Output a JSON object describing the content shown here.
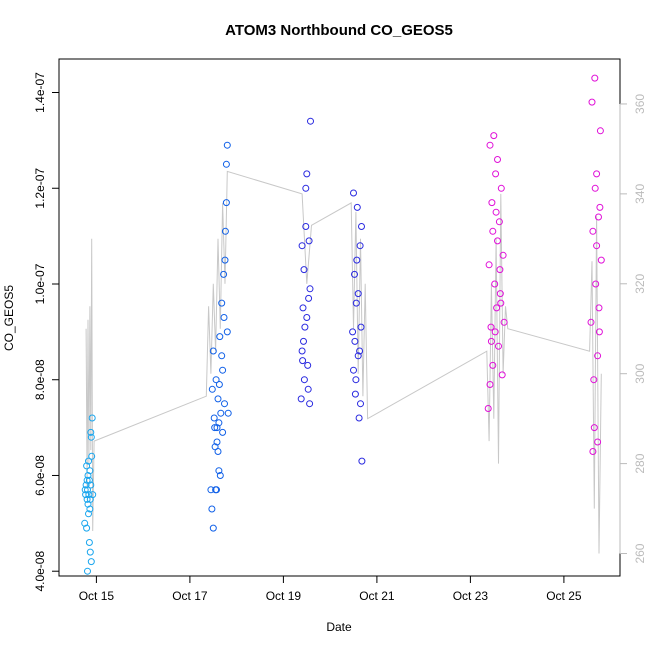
{
  "chart_data": {
    "type": "scatter",
    "title": "ATOM3 Northbound CO_GEOS5",
    "xlabel": "Date",
    "ylabel": "CO_GEOS5",
    "x_ticks": [
      "Oct 15",
      "Oct 17",
      "Oct 19",
      "Oct 21",
      "Oct 23",
      "Oct 25"
    ],
    "x_tick_days": [
      15,
      17,
      19,
      21,
      23,
      25
    ],
    "xlim": [
      14.2,
      26.2
    ],
    "ylim": [
      3.9e-08,
      1.47e-07
    ],
    "y_ticks": [
      "4.0e-08",
      "6.0e-08",
      "8.0e-08",
      "1.0e-07",
      "1.2e-07",
      "1.4e-07"
    ],
    "y_tick_values": [
      4e-08,
      6e-08,
      8e-08,
      1e-07,
      1.2e-07,
      1.4e-07
    ],
    "y2_ticks": [
      "260",
      "280",
      "300",
      "320",
      "340",
      "360"
    ],
    "y2_tick_values": [
      260,
      280,
      300,
      320,
      340,
      360
    ],
    "y2lim": [
      255,
      370
    ],
    "grid": false,
    "line_series": {
      "color": "#c8c8c8",
      "x": [
        14.78,
        14.8,
        14.82,
        14.84,
        14.86,
        14.88,
        14.9,
        14.92,
        14.95,
        17.35,
        17.4,
        17.45,
        17.5,
        17.55,
        17.6,
        17.65,
        17.7,
        17.75,
        17.8,
        19.4,
        19.5,
        19.6,
        20.45,
        20.5,
        20.55,
        20.6,
        20.65,
        20.7,
        20.75,
        20.8,
        23.35,
        23.4,
        23.45,
        23.5,
        23.55,
        23.6,
        23.65,
        23.7,
        23.75,
        23.8,
        25.55,
        25.6,
        25.65,
        25.7,
        25.75,
        25.8
      ],
      "y": [
        310,
        275,
        312,
        280,
        315,
        283,
        330,
        265,
        285,
        295,
        315,
        300,
        320,
        305,
        330,
        310,
        338,
        320,
        345,
        340,
        320,
        333,
        338,
        310,
        336,
        300,
        330,
        295,
        320,
        290,
        305,
        285,
        320,
        290,
        330,
        280,
        340,
        300,
        315,
        310,
        305,
        325,
        270,
        335,
        260,
        300
      ]
    },
    "series": [
      {
        "color": "#1aa6ee",
        "x": [
          14.75,
          14.77,
          14.78,
          14.79,
          14.8,
          14.8,
          14.81,
          14.82,
          14.82,
          14.83,
          14.84,
          14.85,
          14.85,
          14.86,
          14.87,
          14.88,
          14.88,
          14.89,
          14.9,
          14.91,
          14.92,
          14.79,
          14.83,
          14.86,
          14.89,
          14.76,
          14.81,
          14.87
        ],
        "y": [
          5e-08,
          5.6e-08,
          5.8e-08,
          6.2e-08,
          5.5e-08,
          5.9e-08,
          5.7e-08,
          6e-08,
          5.4e-08,
          6.3e-08,
          5.6e-08,
          4.6e-08,
          5.9e-08,
          5.3e-08,
          4.4e-08,
          6.9e-08,
          5.8e-08,
          4.2e-08,
          6.4e-08,
          7.2e-08,
          5.6e-08,
          4.9e-08,
          5.2e-08,
          6.1e-08,
          6.8e-08,
          5.7e-08,
          4e-08,
          5.5e-08
        ]
      },
      {
        "color": "#1060e8",
        "x": [
          17.45,
          17.48,
          17.5,
          17.52,
          17.54,
          17.56,
          17.58,
          17.6,
          17.62,
          17.64,
          17.66,
          17.68,
          17.7,
          17.72,
          17.74,
          17.76,
          17.78,
          17.8,
          17.82,
          17.5,
          17.55,
          17.6,
          17.65,
          17.7,
          17.75,
          17.8,
          17.47,
          17.53,
          17.58,
          17.63,
          17.68,
          17.73,
          17.78,
          17.57,
          17.62
        ],
        "y": [
          5.7e-08,
          7.8e-08,
          8.6e-08,
          7.2e-08,
          6.6e-08,
          8e-08,
          7e-08,
          7.6e-08,
          6.1e-08,
          8.9e-08,
          7.3e-08,
          9.6e-08,
          6.9e-08,
          1.02e-07,
          7.5e-08,
          1.11e-07,
          1.25e-07,
          9e-08,
          7.3e-08,
          4.9e-08,
          5.7e-08,
          6.5e-08,
          6e-08,
          8.2e-08,
          1.05e-07,
          1.29e-07,
          5.3e-08,
          7e-08,
          6.7e-08,
          7.9e-08,
          8.5e-08,
          9.3e-08,
          1.17e-07,
          5.7e-08,
          7.1e-08
        ]
      },
      {
        "color": "#2a2ae0",
        "x": [
          19.38,
          19.4,
          19.42,
          19.44,
          19.46,
          19.48,
          19.5,
          19.52,
          19.54,
          19.56,
          19.58,
          19.4,
          19.45,
          19.5,
          19.55,
          19.43,
          19.48,
          19.53,
          19.57,
          19.41,
          20.48,
          20.5,
          20.52,
          20.54,
          20.56,
          20.58,
          20.6,
          20.62,
          20.64,
          20.66,
          20.68,
          20.5,
          20.55,
          20.6,
          20.65,
          20.53,
          20.57,
          20.63,
          20.67
        ],
        "y": [
          7.6e-08,
          8.6e-08,
          9.5e-08,
          1.03e-07,
          9.1e-08,
          1.12e-07,
          1.23e-07,
          8.3e-08,
          9.7e-08,
          7.5e-08,
          1.34e-07,
          1.08e-07,
          8e-08,
          9.3e-08,
          1.09e-07,
          8.8e-08,
          1.2e-07,
          7.8e-08,
          9.9e-08,
          8.4e-08,
          9e-08,
          8.2e-08,
          1.02e-07,
          7.7e-08,
          9.6e-08,
          1.16e-07,
          8.5e-08,
          7.2e-08,
          1.08e-07,
          9.1e-08,
          6.3e-08,
          1.19e-07,
          8e-08,
          9.8e-08,
          7.5e-08,
          8.8e-08,
          1.05e-07,
          8.6e-08,
          1.12e-07
        ]
      },
      {
        "color": "#e010d8",
        "x": [
          23.38,
          23.4,
          23.42,
          23.44,
          23.46,
          23.48,
          23.5,
          23.52,
          23.54,
          23.56,
          23.58,
          23.6,
          23.62,
          23.64,
          23.66,
          23.68,
          23.7,
          23.72,
          23.42,
          23.48,
          23.53,
          23.58,
          23.63,
          23.45,
          23.55,
          23.65,
          25.58,
          25.6,
          25.62,
          25.64,
          25.66,
          25.68,
          25.7,
          25.72,
          25.74,
          25.76,
          25.78,
          25.8,
          25.62,
          25.67,
          25.72,
          25.77,
          25.65,
          25.7,
          25.75
        ],
        "y": [
          7.4e-08,
          1.04e-07,
          1.29e-07,
          9.1e-08,
          1.17e-07,
          8.3e-08,
          1.31e-07,
          1e-07,
          1.23e-07,
          9.5e-08,
          1.09e-07,
          8.7e-08,
          1.13e-07,
          9.8e-08,
          1.2e-07,
          8.1e-08,
          1.06e-07,
          9.2e-08,
          7.9e-08,
          1.11e-07,
          9e-08,
          1.26e-07,
          1.03e-07,
          8.8e-08,
          1.15e-07,
          9.6e-08,
          9.2e-08,
          1.38e-07,
          1.11e-07,
          8e-08,
          1.43e-07,
          1e-07,
          1.23e-07,
          6.7e-08,
          1.14e-07,
          9e-08,
          1.32e-07,
          1.05e-07,
          6.5e-08,
          1.2e-07,
          8.5e-08,
          1.16e-07,
          7e-08,
          1.08e-07,
          9.5e-08
        ]
      }
    ]
  }
}
